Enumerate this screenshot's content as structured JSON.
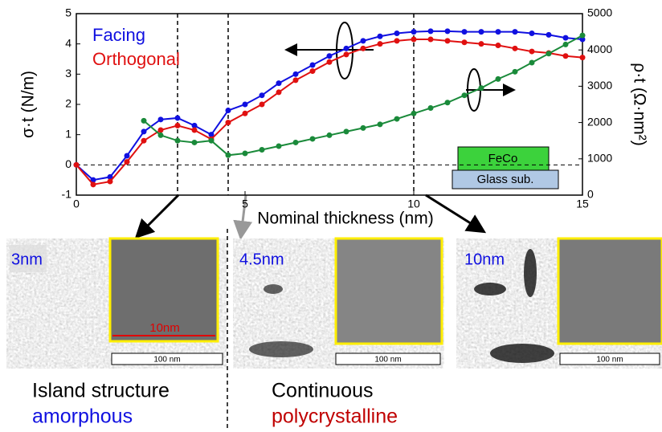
{
  "chart_data": {
    "type": "line",
    "x": [
      0,
      0.5,
      1,
      1.5,
      2,
      2.5,
      3,
      3.5,
      4,
      4.5,
      5,
      5.5,
      6,
      6.5,
      7,
      7.5,
      8,
      8.5,
      9,
      9.5,
      10,
      10.5,
      11,
      11.5,
      12,
      12.5,
      13,
      13.5,
      14,
      14.5,
      15
    ],
    "series": [
      {
        "name": "Facing",
        "color": "#1010e0",
        "values": [
          0,
          -0.5,
          -0.4,
          0.3,
          1.1,
          1.5,
          1.55,
          1.3,
          1.0,
          1.8,
          2.0,
          2.3,
          2.7,
          3.0,
          3.3,
          3.6,
          3.85,
          4.1,
          4.25,
          4.35,
          4.4,
          4.42,
          4.42,
          4.4,
          4.4,
          4.4,
          4.4,
          4.35,
          4.3,
          4.2,
          4.15
        ]
      },
      {
        "name": "Orthogonal",
        "color": "#e01010",
        "values": [
          0,
          -0.65,
          -0.55,
          0.1,
          0.8,
          1.15,
          1.3,
          1.15,
          0.85,
          1.4,
          1.7,
          2.0,
          2.4,
          2.8,
          3.1,
          3.4,
          3.65,
          3.85,
          4.0,
          4.1,
          4.15,
          4.15,
          4.1,
          4.05,
          4.0,
          3.95,
          3.85,
          3.75,
          3.7,
          3.6,
          3.55
        ]
      },
      {
        "color": "#1a8a3a",
        "axis": "y2",
        "values": [
          null,
          null,
          null,
          null,
          2050,
          1650,
          1500,
          1450,
          1500,
          1100,
          1150,
          1250,
          1350,
          1450,
          1550,
          1650,
          1750,
          1850,
          1950,
          2100,
          2250,
          2400,
          2550,
          2750,
          2950,
          3200,
          3400,
          3650,
          3900,
          4150,
          4400
        ]
      }
    ],
    "xlabel": "Nominal thickness (nm)",
    "ylabel": "σ·t (N/m)",
    "y2label": "ρ·t (Ω·nm²)",
    "xlim": [
      0,
      15
    ],
    "xticks": [
      0,
      5,
      10,
      15
    ],
    "ylim": [
      -1,
      5
    ],
    "yticks": [
      -1,
      0,
      1,
      2,
      3,
      4,
      5
    ],
    "y2lim": [
      0,
      5000
    ],
    "y2ticks": [
      0,
      1000,
      2000,
      3000,
      4000,
      5000
    ],
    "reference_x": [
      3,
      4.5,
      10
    ],
    "substrate": {
      "film": "FeCo",
      "base": "Glass sub."
    }
  },
  "panels": [
    {
      "label": "3nm",
      "scale_bar": "100 nm",
      "inset_scale": "10nm"
    },
    {
      "label": "4.5nm",
      "scale_bar": "100 nm"
    },
    {
      "label": "10nm",
      "scale_bar": "100 nm"
    }
  ],
  "captions": [
    {
      "structure": "Island structure",
      "phase": "amorphous"
    },
    {
      "structure": "Continuous",
      "phase": "polycrystalline"
    }
  ]
}
